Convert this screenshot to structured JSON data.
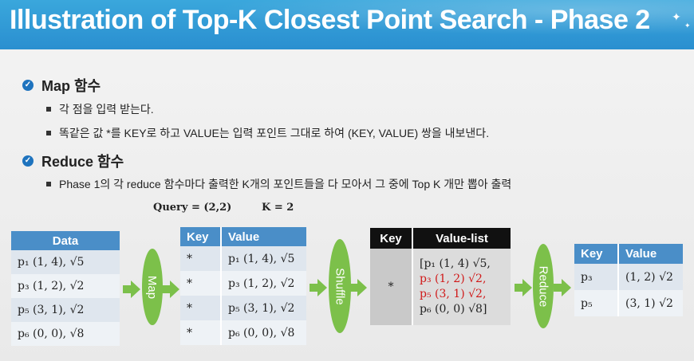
{
  "title": "Illustration of Top-K Closest Point Search  - Phase 2",
  "bullets": {
    "map_heading": "Map 함수",
    "map_item1": "각 점을 입력 받는다.",
    "map_item2": "똑같은 값 *를 KEY로 하고 VALUE는 입력 포인트 그대로 하여 (KEY, VALUE) 쌍을 내보낸다.",
    "reduce_heading": "Reduce 함수",
    "reduce_item1": "Phase 1의 각 reduce 함수마다 출력한  K개의 포인트들을 다 모아서 그 중에 Top K 개만 뽑아 출력"
  },
  "query": "Query = (2,2)",
  "k": "K = 2",
  "data_table": {
    "header": "Data",
    "rows": [
      "p₁  (1, 4),  √5",
      "p₃  (1, 2),  √2",
      "p₅  (3, 1),  √2",
      "p₆  (0, 0),  √8"
    ]
  },
  "map_label": "Map",
  "kv_table": {
    "key_header": "Key",
    "value_header": "Value",
    "rows": [
      {
        "key": "*",
        "value": "p₁  (1, 4),  √5"
      },
      {
        "key": "*",
        "value": "p₃  (1, 2),  √2"
      },
      {
        "key": "*",
        "value": "p₅  (3, 1),  √2"
      },
      {
        "key": "*",
        "value": "p₆  (0, 0),  √8"
      }
    ]
  },
  "shuffle_label": "Shuffle",
  "vl_table": {
    "key_header": "Key",
    "value_header": "Value-list",
    "key": "*",
    "lines": [
      "[p₁  (1, 4) √5,",
      "p₃  (1, 2) √2,",
      "p₅  (3, 1) √2,",
      "p₆  (0, 0) √8]"
    ]
  },
  "reduce_label": "Reduce",
  "out_table": {
    "key_header": "Key",
    "value_header": "Value",
    "rows": [
      {
        "key": "p₃",
        "value": "(1, 2)  √2"
      },
      {
        "key": "p₅",
        "value": "(3, 1)  √2"
      }
    ]
  },
  "colors": {
    "title_bg": "#2a8fd0",
    "header_blue": "#4a8ec8",
    "header_black": "#111111",
    "oval_green": "#7cc04a",
    "highlight_red": "#d01818"
  }
}
